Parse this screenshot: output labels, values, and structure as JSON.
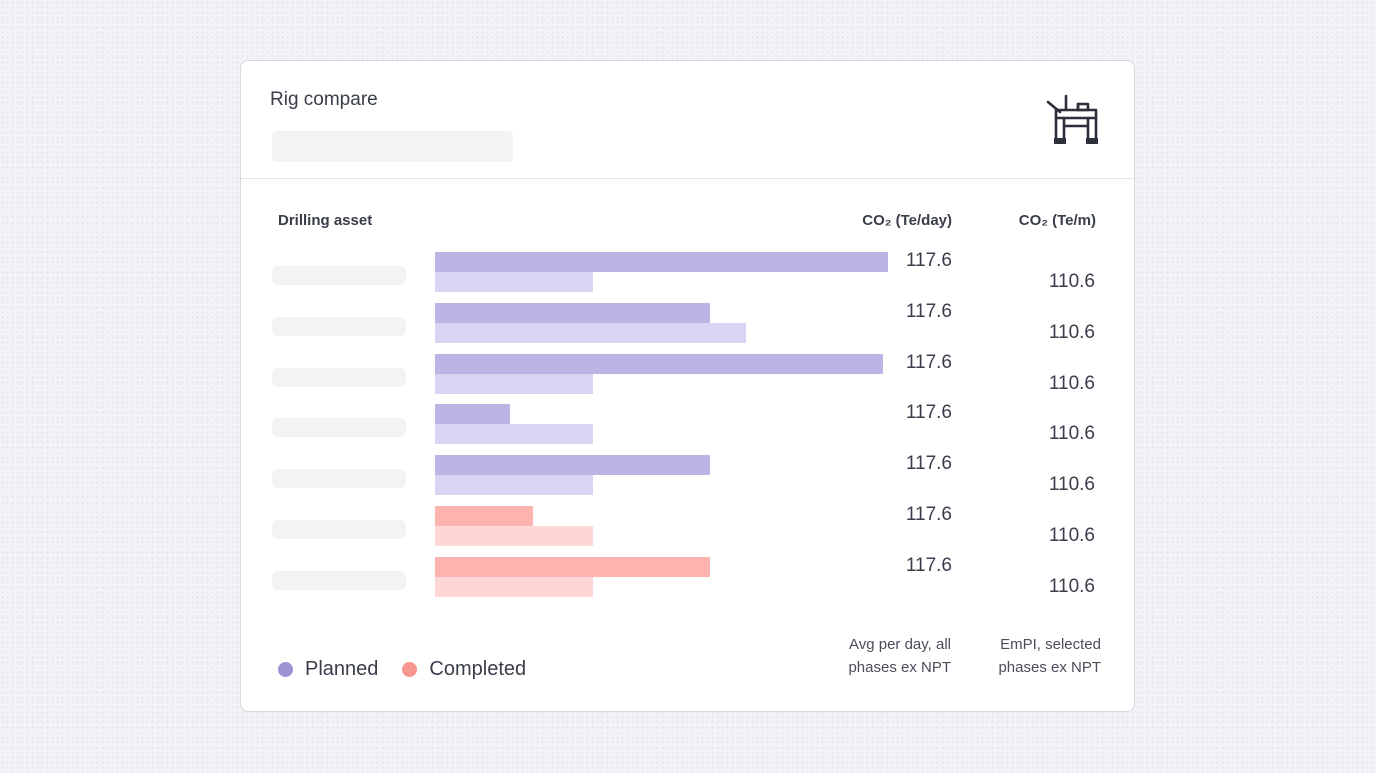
{
  "card": {
    "title": "Rig compare",
    "icon": "offshore-rig-icon"
  },
  "columns": {
    "asset": "Drilling asset",
    "co2_day": "CO₂ (Te/day)",
    "co2_m": "CO₂ (Te/m)"
  },
  "colors": {
    "planned_primary": "#bbb5e4",
    "planned_secondary": "#d8d4f1",
    "completed_primary": "#fdb4b1",
    "completed_secondary": "#fdd7d6",
    "legend_planned": "#9b93d3",
    "legend_completed": "#f7958f"
  },
  "chart_data": {
    "type": "bar",
    "orientation": "horizontal",
    "xlim": [
      0,
      1
    ],
    "series_scale": "relative bar length as fraction of max",
    "rows": [
      {
        "status": "planned",
        "bar_primary": 1.0,
        "bar_secondary": 0.349,
        "co2_day": "117.6",
        "co2_m": "110.6"
      },
      {
        "status": "planned",
        "bar_primary": 0.608,
        "bar_secondary": 0.686,
        "co2_day": "117.6",
        "co2_m": "110.6"
      },
      {
        "status": "planned",
        "bar_primary": 0.988,
        "bar_secondary": 0.349,
        "co2_day": "117.6",
        "co2_m": "110.6"
      },
      {
        "status": "planned",
        "bar_primary": 0.166,
        "bar_secondary": 0.349,
        "co2_day": "117.6",
        "co2_m": "110.6"
      },
      {
        "status": "planned",
        "bar_primary": 0.608,
        "bar_secondary": 0.349,
        "co2_day": "117.6",
        "co2_m": "110.6"
      },
      {
        "status": "completed",
        "bar_primary": 0.216,
        "bar_secondary": 0.349,
        "co2_day": "117.6",
        "co2_m": "110.6"
      },
      {
        "status": "completed",
        "bar_primary": 0.608,
        "bar_secondary": 0.349,
        "co2_day": "117.6",
        "co2_m": "110.6"
      }
    ]
  },
  "legend": {
    "planned": "Planned",
    "completed": "Completed"
  },
  "footnotes": {
    "co2_day": "Avg per day, all phases ex NPT",
    "co2_m": "EmPI, selected phases ex NPT"
  }
}
